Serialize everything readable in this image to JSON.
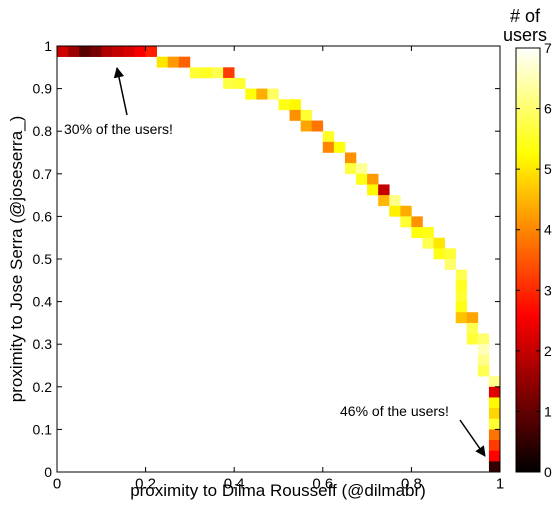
{
  "chart_data": {
    "type": "heatmap",
    "xlabel": "proximity to Dilma Rousseff (@dilmabr)",
    "ylabel": "proximity to Jose Serra (@joseserra_)",
    "xlim": [
      0,
      1
    ],
    "ylim": [
      0,
      1
    ],
    "x_ticks": [
      "0",
      "0.2",
      "0.4",
      "0.6",
      "0.8",
      "1"
    ],
    "y_ticks": [
      "0",
      "0.1",
      "0.2",
      "0.3",
      "0.4",
      "0.5",
      "0.6",
      "0.7",
      "0.8",
      "0.9",
      "1"
    ],
    "colorbar": {
      "title_line1": "# of",
      "title_line2": "users",
      "range": [
        0,
        7
      ],
      "ticks": [
        "0",
        "1",
        "2",
        "3",
        "4",
        "5",
        "6",
        "7"
      ],
      "colormap": "hot",
      "scale": "log"
    },
    "annotations": [
      {
        "text": "30% of the users!",
        "target_x": 0.13,
        "target_y": 0.985
      },
      {
        "text": "46% of the users!",
        "target_x": 0.985,
        "target_y": 0.005
      }
    ],
    "cell_size": [
      0.025,
      0.025
    ],
    "cells": [
      {
        "x": 0.0125,
        "y": 0.9875,
        "v": 2.1
      },
      {
        "x": 0.0375,
        "y": 0.9875,
        "v": 1.6
      },
      {
        "x": 0.0625,
        "y": 0.9875,
        "v": 0.9
      },
      {
        "x": 0.0875,
        "y": 0.9875,
        "v": 1.2
      },
      {
        "x": 0.1125,
        "y": 0.9875,
        "v": 1.8
      },
      {
        "x": 0.1375,
        "y": 0.9875,
        "v": 2.0
      },
      {
        "x": 0.1625,
        "y": 0.9875,
        "v": 2.2
      },
      {
        "x": 0.1875,
        "y": 0.9875,
        "v": 2.5
      },
      {
        "x": 0.2125,
        "y": 0.9875,
        "v": 2.9
      },
      {
        "x": 0.2375,
        "y": 0.9625,
        "v": 5.0
      },
      {
        "x": 0.2625,
        "y": 0.9625,
        "v": 4.2
      },
      {
        "x": 0.2875,
        "y": 0.9625,
        "v": 3.6
      },
      {
        "x": 0.3125,
        "y": 0.9375,
        "v": 5.6
      },
      {
        "x": 0.3375,
        "y": 0.9375,
        "v": 5.5
      },
      {
        "x": 0.3625,
        "y": 0.9375,
        "v": 5.8
      },
      {
        "x": 0.3875,
        "y": 0.9375,
        "v": 3.2
      },
      {
        "x": 0.3875,
        "y": 0.9125,
        "v": 5.7
      },
      {
        "x": 0.4125,
        "y": 0.9125,
        "v": 5.6
      },
      {
        "x": 0.4375,
        "y": 0.8875,
        "v": 5.3
      },
      {
        "x": 0.4625,
        "y": 0.8875,
        "v": 4.4
      },
      {
        "x": 0.4875,
        "y": 0.8875,
        "v": 5.9
      },
      {
        "x": 0.5125,
        "y": 0.8625,
        "v": 5.4
      },
      {
        "x": 0.5375,
        "y": 0.8625,
        "v": 5.2
      },
      {
        "x": 0.5375,
        "y": 0.8375,
        "v": 4.1
      },
      {
        "x": 0.5625,
        "y": 0.8375,
        "v": 5.6
      },
      {
        "x": 0.5625,
        "y": 0.8125,
        "v": 4.3
      },
      {
        "x": 0.5875,
        "y": 0.8125,
        "v": 3.8
      },
      {
        "x": 0.6125,
        "y": 0.7875,
        "v": 5.5
      },
      {
        "x": 0.6125,
        "y": 0.7625,
        "v": 4.0
      },
      {
        "x": 0.6375,
        "y": 0.7625,
        "v": 5.3
      },
      {
        "x": 0.6625,
        "y": 0.7375,
        "v": 4.1
      },
      {
        "x": 0.6625,
        "y": 0.7125,
        "v": 5.7
      },
      {
        "x": 0.6875,
        "y": 0.7125,
        "v": 6.3
      },
      {
        "x": 0.6875,
        "y": 0.6875,
        "v": 5.4
      },
      {
        "x": 0.7125,
        "y": 0.6875,
        "v": 4.2
      },
      {
        "x": 0.7125,
        "y": 0.6625,
        "v": 5.2
      },
      {
        "x": 0.7375,
        "y": 0.6625,
        "v": 2.0
      },
      {
        "x": 0.7375,
        "y": 0.6375,
        "v": 4.5
      },
      {
        "x": 0.7625,
        "y": 0.6375,
        "v": 6.2
      },
      {
        "x": 0.7625,
        "y": 0.6125,
        "v": 5.1
      },
      {
        "x": 0.7875,
        "y": 0.6125,
        "v": 4.4
      },
      {
        "x": 0.7875,
        "y": 0.5875,
        "v": 5.6
      },
      {
        "x": 0.8125,
        "y": 0.5875,
        "v": 4.1
      },
      {
        "x": 0.8125,
        "y": 0.5625,
        "v": 5.3
      },
      {
        "x": 0.8375,
        "y": 0.5625,
        "v": 5.4
      },
      {
        "x": 0.8375,
        "y": 0.5375,
        "v": 5.8
      },
      {
        "x": 0.8625,
        "y": 0.5375,
        "v": 5.0
      },
      {
        "x": 0.8625,
        "y": 0.5125,
        "v": 5.4
      },
      {
        "x": 0.8875,
        "y": 0.5125,
        "v": 5.6
      },
      {
        "x": 0.8875,
        "y": 0.4875,
        "v": 6.0
      },
      {
        "x": 0.9125,
        "y": 0.4625,
        "v": 5.8
      },
      {
        "x": 0.9125,
        "y": 0.4375,
        "v": 5.5
      },
      {
        "x": 0.9125,
        "y": 0.4125,
        "v": 5.6
      },
      {
        "x": 0.9125,
        "y": 0.3875,
        "v": 5.4
      },
      {
        "x": 0.9125,
        "y": 0.3625,
        "v": 4.6
      },
      {
        "x": 0.9375,
        "y": 0.3625,
        "v": 4.3
      },
      {
        "x": 0.9375,
        "y": 0.3375,
        "v": 5.8
      },
      {
        "x": 0.9375,
        "y": 0.3125,
        "v": 5.6
      },
      {
        "x": 0.9625,
        "y": 0.3125,
        "v": 6.0
      },
      {
        "x": 0.9625,
        "y": 0.2875,
        "v": 6.5
      },
      {
        "x": 0.9625,
        "y": 0.2625,
        "v": 6.2
      },
      {
        "x": 0.9625,
        "y": 0.2375,
        "v": 5.8
      },
      {
        "x": 0.9875,
        "y": 0.2125,
        "v": 6.2
      },
      {
        "x": 0.9875,
        "y": 0.1875,
        "v": 2.3
      },
      {
        "x": 0.9875,
        "y": 0.1625,
        "v": 5.2
      },
      {
        "x": 0.9875,
        "y": 0.1375,
        "v": 4.8
      },
      {
        "x": 0.9875,
        "y": 0.1125,
        "v": 5.6
      },
      {
        "x": 0.9875,
        "y": 0.0875,
        "v": 3.8
      },
      {
        "x": 0.9875,
        "y": 0.0625,
        "v": 3.2
      },
      {
        "x": 0.9875,
        "y": 0.0375,
        "v": 2.6
      },
      {
        "x": 0.9875,
        "y": 0.0125,
        "v": 0.5
      }
    ]
  }
}
